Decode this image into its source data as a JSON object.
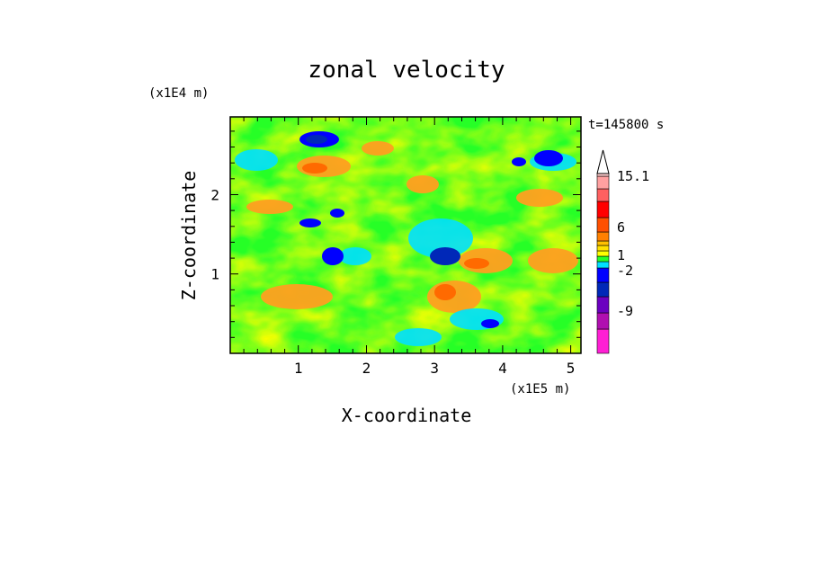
{
  "chart_data": {
    "type": "heatmap",
    "title": "zonal velocity",
    "xlabel": "X-coordinate",
    "ylabel": "Z-coordinate",
    "x_unit": "(x1E5 m)",
    "y_unit": "(x1E4 m)",
    "time_label": "t=145800 s",
    "xlim": [
      0,
      5.15
    ],
    "ylim": [
      0,
      2.98
    ],
    "x_ticks": [
      1,
      2,
      3,
      4,
      5
    ],
    "y_ticks": [
      1,
      2
    ],
    "colorbar": {
      "labels": [
        "15.1",
        "6",
        "1",
        "-2",
        "-9"
      ],
      "colors": [
        "#ff1fd4",
        "#b00fb0",
        "#6b00c0",
        "#0028b8",
        "#0000ff",
        "#00e0ff",
        "#28ff28",
        "#ffff00",
        "#ffe000",
        "#ffc000",
        "#ff8000",
        "#ff5000",
        "#ff0000",
        "#ff6060",
        "#ffa0a0",
        "#ffcccc"
      ]
    }
  }
}
